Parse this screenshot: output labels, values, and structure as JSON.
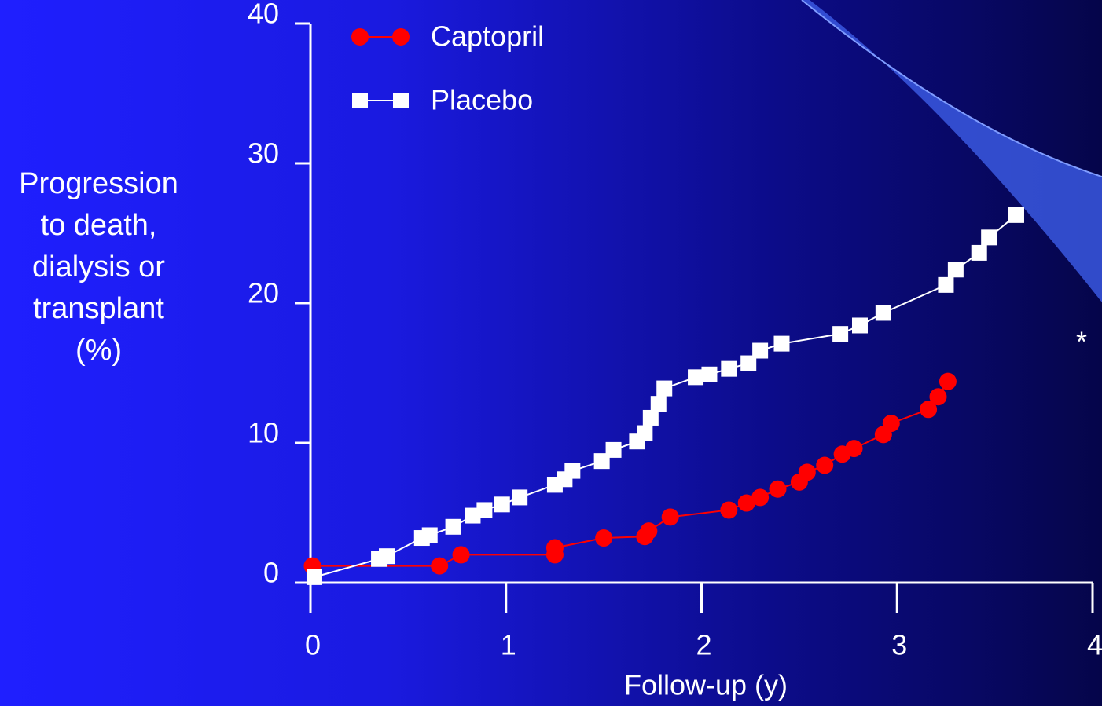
{
  "chart_data": {
    "type": "line",
    "xlabel": "Follow-up (y)",
    "ylabel": "Progression to death, dialysis or transplant (%)",
    "annotation": "*",
    "xlim": [
      0,
      4
    ],
    "xticks": [
      0,
      1,
      2,
      3,
      4
    ],
    "ylim": [
      0,
      40
    ],
    "yticks": [
      0,
      10,
      20,
      30,
      40
    ],
    "legend": "upper left",
    "series": [
      {
        "name": "Captopril",
        "color": "#ff0000",
        "marker": "circle",
        "x": [
          0.01,
          0.66,
          0.77,
          1.25,
          1.25,
          1.5,
          1.71,
          1.73,
          1.84,
          2.14,
          2.23,
          2.3,
          2.39,
          2.5,
          2.54,
          2.63,
          2.72,
          2.78,
          2.93,
          2.97,
          3.16,
          3.21,
          3.26
        ],
        "values": [
          1.2,
          1.2,
          2.0,
          2.0,
          2.5,
          3.2,
          3.3,
          3.7,
          4.7,
          5.2,
          5.7,
          6.1,
          6.7,
          7.2,
          7.9,
          8.4,
          9.2,
          9.6,
          10.6,
          11.4,
          12.4,
          13.3,
          14.4
        ]
      },
      {
        "name": "Placebo",
        "color": "#ffffff",
        "marker": "square",
        "x": [
          0.02,
          0.35,
          0.39,
          0.57,
          0.61,
          0.73,
          0.83,
          0.89,
          0.98,
          1.07,
          1.25,
          1.3,
          1.34,
          1.49,
          1.55,
          1.67,
          1.71,
          1.74,
          1.78,
          1.81,
          1.97,
          2.04,
          2.14,
          2.24,
          2.3,
          2.41,
          2.71,
          2.81,
          2.93,
          3.25,
          3.3,
          3.42,
          3.47,
          3.61
        ],
        "values": [
          0.4,
          1.7,
          1.9,
          3.2,
          3.4,
          4.0,
          4.8,
          5.2,
          5.6,
          6.1,
          7.0,
          7.4,
          8.0,
          8.7,
          9.5,
          10.1,
          10.7,
          11.8,
          12.8,
          13.9,
          14.7,
          14.9,
          15.3,
          15.7,
          16.6,
          17.1,
          17.8,
          18.4,
          19.3,
          21.3,
          22.4,
          23.6,
          24.7,
          26.3
        ]
      }
    ]
  }
}
